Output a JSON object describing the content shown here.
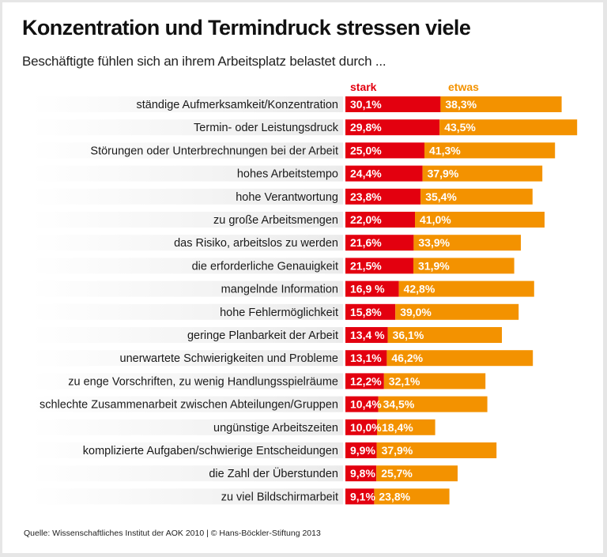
{
  "title": "Konzentration und Termindruck stressen viele",
  "subtitle": "Beschäftigte fühlen sich an ihrem Arbeitsplatz belastet durch ...",
  "footer": "Quelle: Wissenschaftliches Institut der AOK 2010 | © Hans-Böckler-Stiftung 2013",
  "colors": {
    "stark": "#e3000f",
    "etwas": "#f39200",
    "label_band_start": "#ffffff",
    "label_band_end": "#ebebeb"
  },
  "chart_data": {
    "type": "bar",
    "orientation": "horizontal",
    "stacked": true,
    "title": "Konzentration und Termindruck stressen viele",
    "subtitle": "Beschäftigte fühlen sich an ihrem Arbeitsplatz belastet durch ...",
    "xlabel": "",
    "ylabel": "",
    "unit": "%",
    "legend_position": "top",
    "grid": false,
    "categories": [
      "ständige Aufmerksamkeit/Konzentration",
      "Termin- oder Leistungsdruck",
      "Störungen oder Unterbrechnungen bei der Arbeit",
      "hohes Arbeitstempo",
      "hohe Verantwortung",
      "zu große Arbeitsmengen",
      "das Risiko, arbeitslos zu werden",
      "die erforderliche Genauigkeit",
      "mangelnde Information",
      "hohe Fehlermöglichkeit",
      "geringe Planbarkeit der Arbeit",
      "unerwartete Schwierigkeiten und Probleme",
      "zu enge Vorschriften, zu wenig Handlungsspielräume",
      "schlechte Zusammenarbeit zwischen Abteilungen/Gruppen",
      "ungünstige Arbeitszeiten",
      "komplizierte Aufgaben/schwierige Entscheidungen",
      "die Zahl der Überstunden",
      "zu viel Bildschirmarbeit"
    ],
    "series": [
      {
        "name": "stark",
        "values": [
          30.1,
          29.8,
          25.0,
          24.4,
          23.8,
          22.0,
          21.6,
          21.5,
          16.9,
          15.8,
          13.4,
          13.1,
          12.2,
          10.4,
          10.0,
          9.9,
          9.8,
          9.1
        ],
        "labels": [
          "30,1%",
          "29,8%",
          "25,0%",
          "24,4%",
          "23,8%",
          "22,0%",
          "21,6%",
          "21,5%",
          "16,9 %",
          "15,8%",
          "13,4 %",
          "13,1%",
          "12,2%",
          "10,4%",
          "10,0%",
          "9,9%",
          "9,8%",
          "9,1%"
        ]
      },
      {
        "name": "etwas",
        "values": [
          38.3,
          43.5,
          41.3,
          37.9,
          35.4,
          41.0,
          33.9,
          31.9,
          42.8,
          39.0,
          36.1,
          46.2,
          32.1,
          34.5,
          18.4,
          37.9,
          25.7,
          23.8
        ],
        "labels": [
          "38,3%",
          "43,5%",
          "41,3%",
          "37,9%",
          "35,4%",
          "41,0%",
          "33,9%",
          "31,9%",
          "42,8%",
          "39,0%",
          "36,1%",
          "46,2%",
          "32,1%",
          "34,5%",
          "18,4%",
          "37,9%",
          "25,7%",
          "23,8%"
        ]
      }
    ],
    "xlim": [
      0,
      80
    ]
  }
}
